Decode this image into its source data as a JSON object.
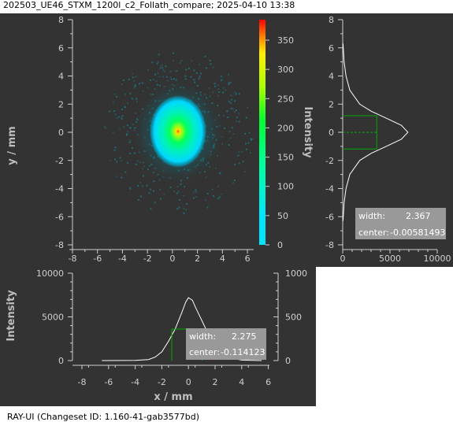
{
  "window": {
    "title": "202503_UE46_STXM_1200l_c2_Follath_compare; 2025-04-10 13:38",
    "footer": "RAY-UI (Changeset ID: 1.160-41-gab3577bd)"
  },
  "main_plot": {
    "ylabel": "y / mm",
    "x_ticks": [
      "-8",
      "-6",
      "-4",
      "-2",
      "0",
      "2",
      "4",
      "6"
    ],
    "y_ticks": [
      "8",
      "6",
      "4",
      "2",
      "0",
      "-2",
      "-4",
      "-6",
      "-8"
    ]
  },
  "colorbar": {
    "label": "Intensity",
    "ticks": [
      "0",
      "50",
      "100",
      "150",
      "200",
      "250",
      "300",
      "350"
    ],
    "range": [
      0,
      385
    ]
  },
  "right_profile": {
    "x_ticks": [
      "0",
      "5000",
      "10000"
    ],
    "y_ticks": [
      "8",
      "6",
      "4",
      "2",
      "0",
      "-2",
      "-4",
      "-6",
      "-8"
    ],
    "stats": {
      "width_label": "width:",
      "width_value": "2.367",
      "center_label": "center:",
      "center_value": "-0.00581493"
    }
  },
  "bottom_profile": {
    "xlabel": "x / mm",
    "ylabel": "Intensity",
    "left_ticks": [
      "10000",
      "5000",
      "0"
    ],
    "right_ticks": [
      "1000",
      "500",
      "0"
    ],
    "x_ticks": [
      "-8",
      "-6",
      "-4",
      "-2",
      "0",
      "2",
      "4",
      "6"
    ],
    "stats": {
      "width_label": "width:",
      "width_value": "2.275",
      "center_label": "center:",
      "center_value": "-0.114123"
    }
  },
  "chart_data": [
    {
      "type": "heatmap",
      "xlim": [
        -8,
        6.5
      ],
      "ylim": [
        -8,
        8
      ],
      "x_ticks": [
        -8,
        -6,
        -4,
        -2,
        0,
        2,
        4,
        6
      ],
      "y_ticks": [
        -8,
        -6,
        -4,
        -2,
        0,
        2,
        4,
        6,
        8
      ],
      "peak_center": [
        0,
        0
      ],
      "ylabel": "y / mm",
      "colorbar": {
        "range": [
          0,
          385
        ],
        "ticks": [
          0,
          50,
          100,
          150,
          200,
          250,
          300,
          350
        ],
        "label": "Intensity"
      }
    },
    {
      "type": "line",
      "orientation": "vertical",
      "ylim": [
        -8,
        8
      ],
      "xlim": [
        0,
        10000
      ],
      "x": [
        -6.3,
        -5,
        -4,
        -3,
        -2,
        -1.5,
        -1,
        -0.5,
        0,
        0.5,
        1,
        1.5,
        2,
        3,
        4,
        5,
        6.3
      ],
      "values": [
        30,
        150,
        350,
        750,
        1800,
        3000,
        4600,
        6200,
        6900,
        6200,
        4600,
        3000,
        1800,
        750,
        350,
        150,
        30
      ],
      "width": 2.367,
      "center": -0.00581493
    },
    {
      "type": "line",
      "xlim": [
        -8,
        6
      ],
      "ylim": [
        0,
        10000
      ],
      "x": [
        -6.5,
        -4,
        -3,
        -2.5,
        -2,
        -1.5,
        -1,
        -0.5,
        -0.2,
        0,
        0.3,
        0.5,
        1,
        1.5,
        2,
        2.5,
        3,
        4,
        5.5
      ],
      "values": [
        0,
        30,
        120,
        400,
        1000,
        2200,
        3600,
        5500,
        6700,
        7200,
        6900,
        6200,
        4600,
        3000,
        1600,
        800,
        350,
        50,
        0
      ],
      "width": 2.275,
      "center": -0.114123,
      "xlabel": "x / mm",
      "ylabel": "Intensity"
    }
  ]
}
